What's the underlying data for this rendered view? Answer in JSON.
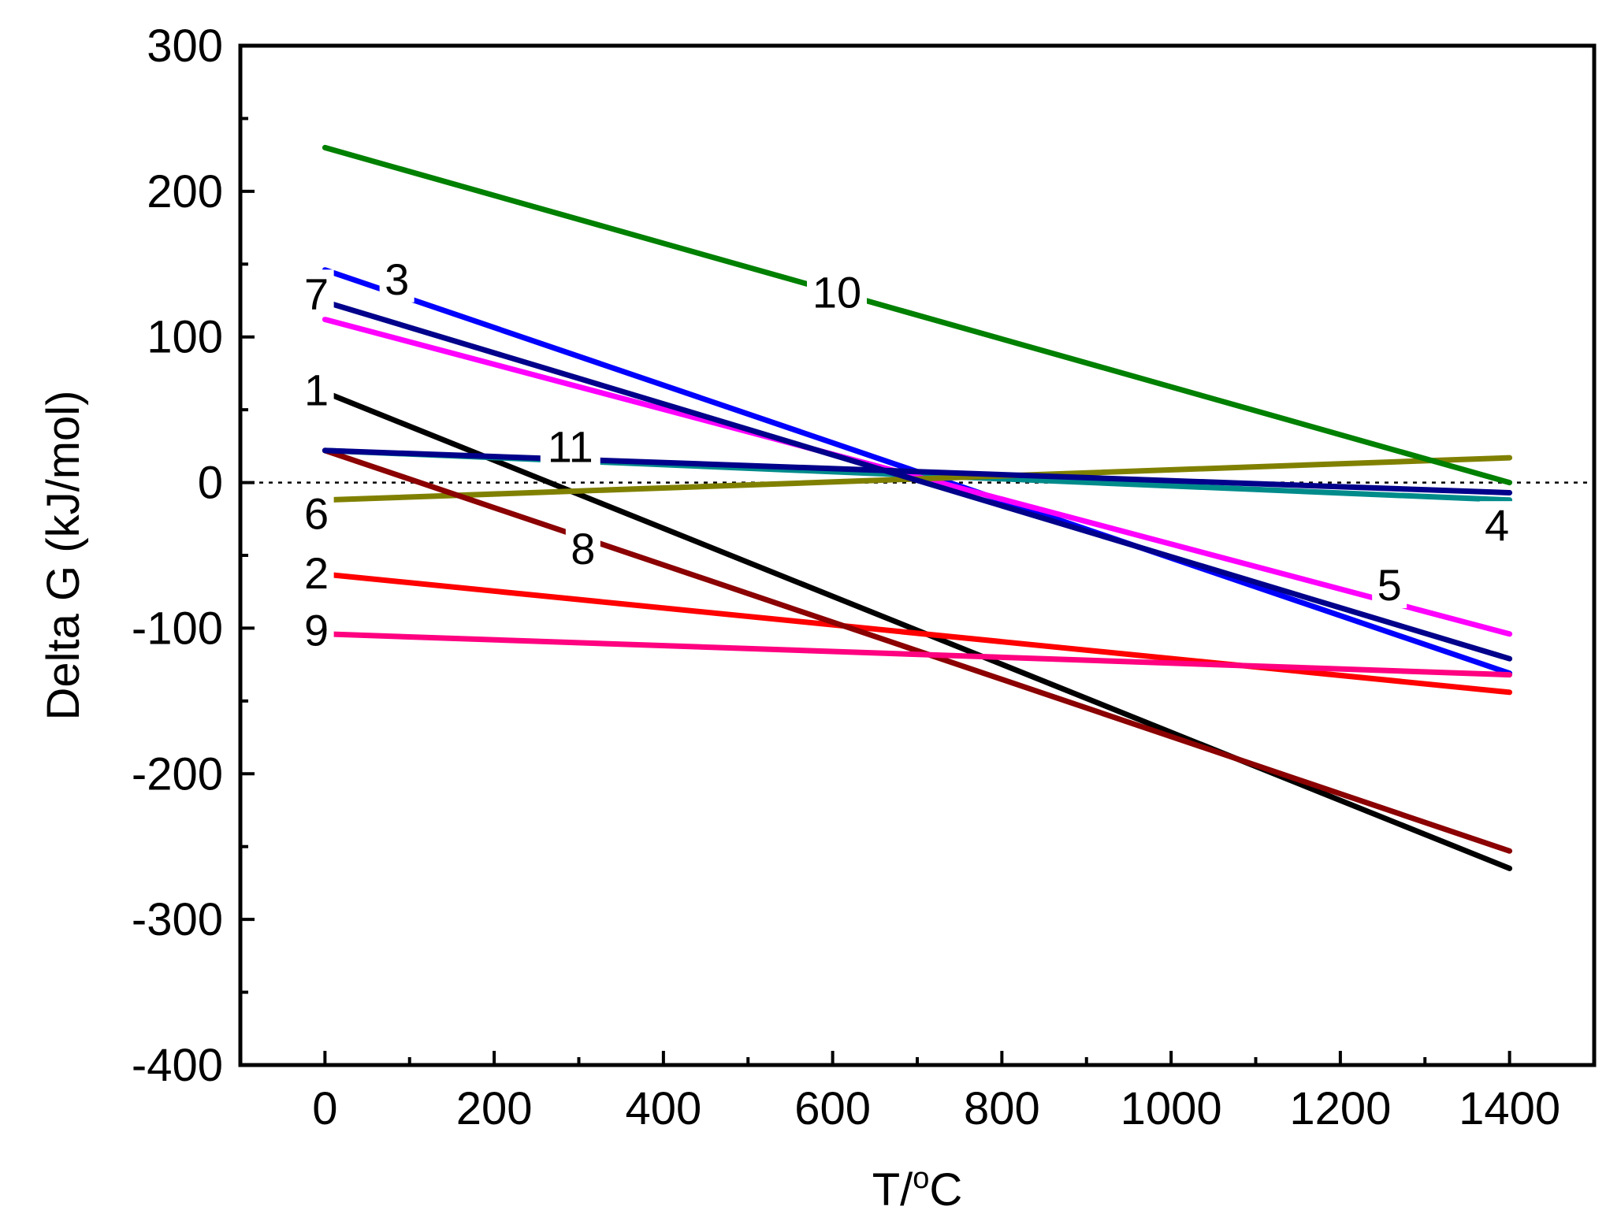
{
  "chart_data": {
    "type": "line",
    "title": "",
    "xlabel": "T/",
    "xlabel_degree": "o",
    "xlabel_unit": "C",
    "ylabel": "Delta G (kJ/mol)",
    "xlim": [
      -100,
      1500
    ],
    "ylim": [
      -400,
      300
    ],
    "xticks": [
      0,
      200,
      400,
      600,
      800,
      1000,
      1200,
      1400
    ],
    "yticks": [
      300,
      200,
      100,
      0,
      -100,
      -200,
      -300,
      -400
    ],
    "xtick_labels": [
      "0",
      "200",
      "400",
      "600",
      "800",
      "1000",
      "1200",
      "1400"
    ],
    "ytick_labels": [
      "300",
      "200",
      "100",
      "0",
      "-100",
      "-200",
      "-300",
      "-400"
    ],
    "zero_reference_line": "dotted",
    "grid": false,
    "legend": "inline numeric labels",
    "series": [
      {
        "name": "1",
        "label": "1",
        "color": "#000000",
        "x": [
          0,
          1400
        ],
        "values": [
          62,
          -265
        ],
        "label_at": [
          -10,
          64
        ]
      },
      {
        "name": "2",
        "label": "2",
        "color": "#ff0000",
        "x": [
          0,
          1400
        ],
        "values": [
          -63,
          -144
        ],
        "label_at": [
          -10,
          -62
        ]
      },
      {
        "name": "3",
        "label": "3",
        "color": "#0000ff",
        "x": [
          0,
          1400
        ],
        "values": [
          146,
          -131
        ],
        "label_at": [
          85,
          140
        ]
      },
      {
        "name": "4",
        "label": "4",
        "color": "#008b8b",
        "x": [
          0,
          1400
        ],
        "values": [
          22,
          -12
        ],
        "label_at": [
          1385,
          -29
        ]
      },
      {
        "name": "5",
        "label": "5",
        "color": "#ff00ff",
        "x": [
          0,
          1400
        ],
        "values": [
          112,
          -104
        ],
        "label_at": [
          1258,
          -70
        ]
      },
      {
        "name": "6",
        "label": "6",
        "color": "#808000",
        "x": [
          0,
          1400
        ],
        "values": [
          -12,
          17
        ],
        "label_at": [
          -10,
          -21
        ]
      },
      {
        "name": "7",
        "label": "7",
        "color": "#00008b",
        "x": [
          0,
          1400
        ],
        "values": [
          124,
          -121
        ],
        "label_at": [
          -10,
          130
        ]
      },
      {
        "name": "8",
        "label": "8",
        "color": "#8b0000",
        "x": [
          0,
          1400
        ],
        "values": [
          22,
          -253
        ],
        "label_at": [
          305,
          -45
        ]
      },
      {
        "name": "9",
        "label": "9",
        "color": "#ff0080",
        "x": [
          0,
          1400
        ],
        "values": [
          -104,
          -132
        ],
        "label_at": [
          -10,
          -101
        ]
      },
      {
        "name": "10",
        "label": "10",
        "color": "#008000",
        "x": [
          0,
          1400
        ],
        "values": [
          230,
          0
        ],
        "label_at": [
          605,
          131
        ]
      },
      {
        "name": "11",
        "label": "11",
        "color": "#00008b",
        "x": [
          0,
          1400
        ],
        "values": [
          22,
          -7
        ],
        "label_at": [
          290,
          25
        ]
      }
    ]
  }
}
